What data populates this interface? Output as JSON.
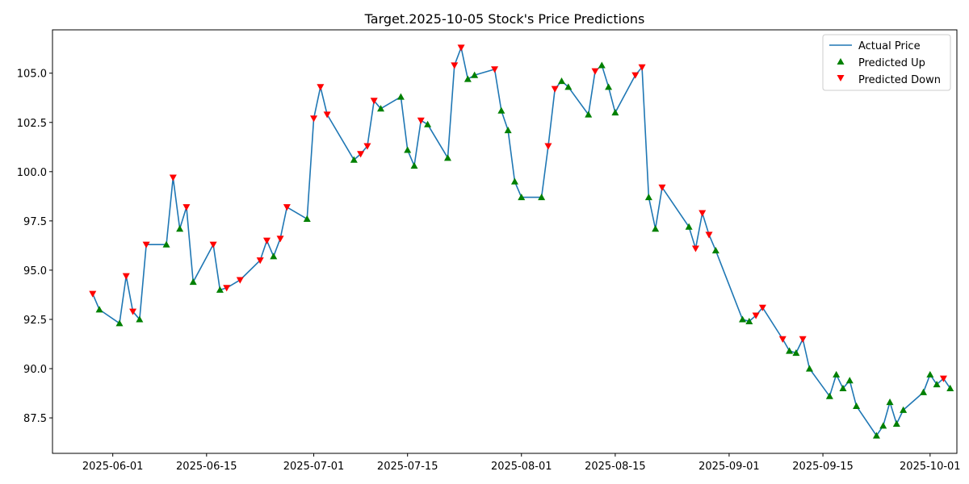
{
  "chart_data": {
    "type": "line",
    "title": "Target.2025-10-05 Stock's Price Predictions",
    "xlabel": "",
    "ylabel": "",
    "x_range": [
      "2025-05-23",
      "2025-10-05"
    ],
    "y_range": [
      85.7,
      107.2
    ],
    "x_ticks": [
      "2025-06-01",
      "2025-06-15",
      "2025-07-01",
      "2025-07-15",
      "2025-08-01",
      "2025-08-15",
      "2025-09-01",
      "2025-09-15",
      "2025-10-01"
    ],
    "y_ticks": [
      87.5,
      90.0,
      92.5,
      95.0,
      97.5,
      100.0,
      102.5,
      105.0
    ],
    "legend": {
      "placement": "top-right",
      "entries": [
        "Actual Price",
        "Predicted Up",
        "Predicted Down"
      ]
    },
    "colors": {
      "line": "#1f77b4",
      "up": "#008000",
      "down": "#ff0000"
    },
    "series": [
      {
        "name": "Actual Price",
        "kind": "line",
        "points": [
          [
            "2025-05-29",
            93.8,
            "down"
          ],
          [
            "2025-05-30",
            93.0,
            "up"
          ],
          [
            "2025-06-02",
            92.3,
            "up"
          ],
          [
            "2025-06-03",
            94.7,
            "down"
          ],
          [
            "2025-06-04",
            92.9,
            "down"
          ],
          [
            "2025-06-05",
            92.5,
            "up"
          ],
          [
            "2025-06-06",
            96.3,
            "down"
          ],
          [
            "2025-06-09",
            96.3,
            "up"
          ],
          [
            "2025-06-10",
            99.7,
            "down"
          ],
          [
            "2025-06-11",
            97.1,
            "up"
          ],
          [
            "2025-06-12",
            98.2,
            "down"
          ],
          [
            "2025-06-13",
            94.4,
            "up"
          ],
          [
            "2025-06-16",
            96.3,
            "down"
          ],
          [
            "2025-06-17",
            94.0,
            "up"
          ],
          [
            "2025-06-18",
            94.1,
            "down"
          ],
          [
            "2025-06-20",
            94.5,
            "down"
          ],
          [
            "2025-06-23",
            95.5,
            "down"
          ],
          [
            "2025-06-24",
            96.5,
            "down"
          ],
          [
            "2025-06-25",
            95.7,
            "up"
          ],
          [
            "2025-06-26",
            96.6,
            "down"
          ],
          [
            "2025-06-27",
            98.2,
            "down"
          ],
          [
            "2025-06-30",
            97.6,
            "up"
          ],
          [
            "2025-07-01",
            102.7,
            "down"
          ],
          [
            "2025-07-02",
            104.3,
            "down"
          ],
          [
            "2025-07-03",
            102.9,
            "down"
          ],
          [
            "2025-07-07",
            100.6,
            "up"
          ],
          [
            "2025-07-08",
            100.9,
            "down"
          ],
          [
            "2025-07-09",
            101.3,
            "down"
          ],
          [
            "2025-07-10",
            103.6,
            "down"
          ],
          [
            "2025-07-11",
            103.2,
            "up"
          ],
          [
            "2025-07-14",
            103.8,
            "up"
          ],
          [
            "2025-07-15",
            101.1,
            "up"
          ],
          [
            "2025-07-16",
            100.3,
            "up"
          ],
          [
            "2025-07-17",
            102.6,
            "down"
          ],
          [
            "2025-07-18",
            102.4,
            "up"
          ],
          [
            "2025-07-21",
            100.7,
            "up"
          ],
          [
            "2025-07-22",
            105.4,
            "down"
          ],
          [
            "2025-07-23",
            106.3,
            "down"
          ],
          [
            "2025-07-24",
            104.7,
            "up"
          ],
          [
            "2025-07-25",
            104.9,
            "up"
          ],
          [
            "2025-07-28",
            105.2,
            "down"
          ],
          [
            "2025-07-29",
            103.1,
            "up"
          ],
          [
            "2025-07-30",
            102.1,
            "up"
          ],
          [
            "2025-07-31",
            99.5,
            "up"
          ],
          [
            "2025-08-01",
            98.7,
            "up"
          ],
          [
            "2025-08-04",
            98.7,
            "up"
          ],
          [
            "2025-08-05",
            101.3,
            "down"
          ],
          [
            "2025-08-06",
            104.2,
            "down"
          ],
          [
            "2025-08-07",
            104.6,
            "up"
          ],
          [
            "2025-08-08",
            104.3,
            "up"
          ],
          [
            "2025-08-11",
            102.9,
            "up"
          ],
          [
            "2025-08-12",
            105.1,
            "down"
          ],
          [
            "2025-08-13",
            105.4,
            "up"
          ],
          [
            "2025-08-14",
            104.3,
            "up"
          ],
          [
            "2025-08-15",
            103.0,
            "up"
          ],
          [
            "2025-08-18",
            104.9,
            "down"
          ],
          [
            "2025-08-19",
            105.3,
            "down"
          ],
          [
            "2025-08-20",
            98.7,
            "up"
          ],
          [
            "2025-08-21",
            97.1,
            "up"
          ],
          [
            "2025-08-22",
            99.2,
            "down"
          ],
          [
            "2025-08-26",
            97.2,
            "up"
          ],
          [
            "2025-08-27",
            96.1,
            "down"
          ],
          [
            "2025-08-28",
            97.9,
            "down"
          ],
          [
            "2025-08-29",
            96.8,
            "down"
          ],
          [
            "2025-08-30",
            96.0,
            "up"
          ],
          [
            "2025-09-03",
            92.5,
            "up"
          ],
          [
            "2025-09-04",
            92.4,
            "up"
          ],
          [
            "2025-09-05",
            92.7,
            "down"
          ],
          [
            "2025-09-06",
            93.1,
            "down"
          ],
          [
            "2025-09-09",
            91.5,
            "down"
          ],
          [
            "2025-09-10",
            90.9,
            "up"
          ],
          [
            "2025-09-11",
            90.8,
            "up"
          ],
          [
            "2025-09-12",
            91.5,
            "down"
          ],
          [
            "2025-09-13",
            90.0,
            "up"
          ],
          [
            "2025-09-16",
            88.6,
            "up"
          ],
          [
            "2025-09-17",
            89.7,
            "up"
          ],
          [
            "2025-09-18",
            89.0,
            "up"
          ],
          [
            "2025-09-19",
            89.4,
            "up"
          ],
          [
            "2025-09-20",
            88.1,
            "up"
          ],
          [
            "2025-09-23",
            86.6,
            "up"
          ],
          [
            "2025-09-24",
            87.1,
            "up"
          ],
          [
            "2025-09-25",
            88.3,
            "up"
          ],
          [
            "2025-09-26",
            87.2,
            "up"
          ],
          [
            "2025-09-27",
            87.9,
            "up"
          ],
          [
            "2025-09-30",
            88.8,
            "up"
          ],
          [
            "2025-10-01",
            89.7,
            "up"
          ],
          [
            "2025-10-02",
            89.2,
            "up"
          ],
          [
            "2025-10-03",
            89.5,
            "down"
          ],
          [
            "2025-10-04",
            89.0,
            "up"
          ]
        ]
      }
    ]
  }
}
